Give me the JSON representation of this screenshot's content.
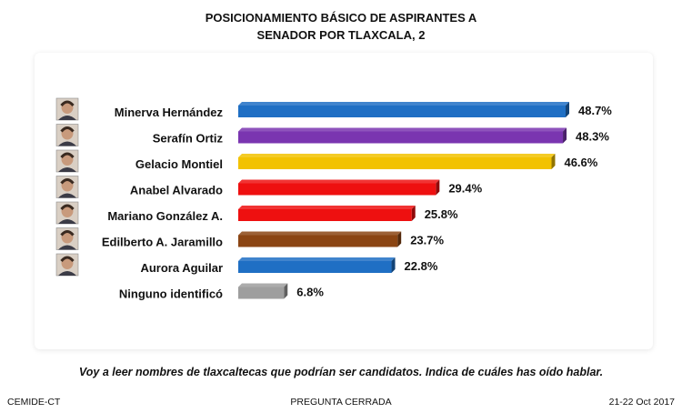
{
  "chart_data": {
    "type": "bar",
    "orientation": "horizontal",
    "title": "POSICIONAMIENTO BÁSICO DE  ASPIRANTES A SENADOR POR TLAXCALA, 2",
    "title_lines": [
      "POSICIONAMIENTO BÁSICO DE  ASPIRANTES A",
      "SENADOR POR TLAXCALA, 2"
    ],
    "categories": [
      "Minerva Hernández",
      "Serafín Ortiz",
      "Gelacio Montiel",
      "Anabel Alvarado",
      "Mariano González A.",
      "Edilberto A. Jaramillo",
      "Aurora Aguilar",
      "Ninguno identificó"
    ],
    "values": [
      48.7,
      48.3,
      46.6,
      29.4,
      25.8,
      23.7,
      22.8,
      6.8
    ],
    "value_labels": [
      "48.7%",
      "48.3%",
      "46.6%",
      "29.4%",
      "25.8%",
      "23.7%",
      "22.8%",
      "6.8%"
    ],
    "colors": [
      "#1f6fc4",
      "#7a35b0",
      "#f2c200",
      "#ee1010",
      "#ee1010",
      "#8b4513",
      "#1f6fc4",
      "#9e9e9e"
    ],
    "portraits": [
      true,
      true,
      true,
      true,
      true,
      true,
      true,
      false
    ],
    "xlim": [
      0,
      55
    ],
    "grid": false,
    "legend": "none"
  },
  "footer": {
    "note": "Voy a leer nombres de tlaxcaltecas que podrían ser candidatos. Indica de cuáles has oído hablar.",
    "source": "CEMIDE-CT",
    "type": "PREGUNTA CERRADA",
    "date": "21-22 Oct 2017"
  }
}
